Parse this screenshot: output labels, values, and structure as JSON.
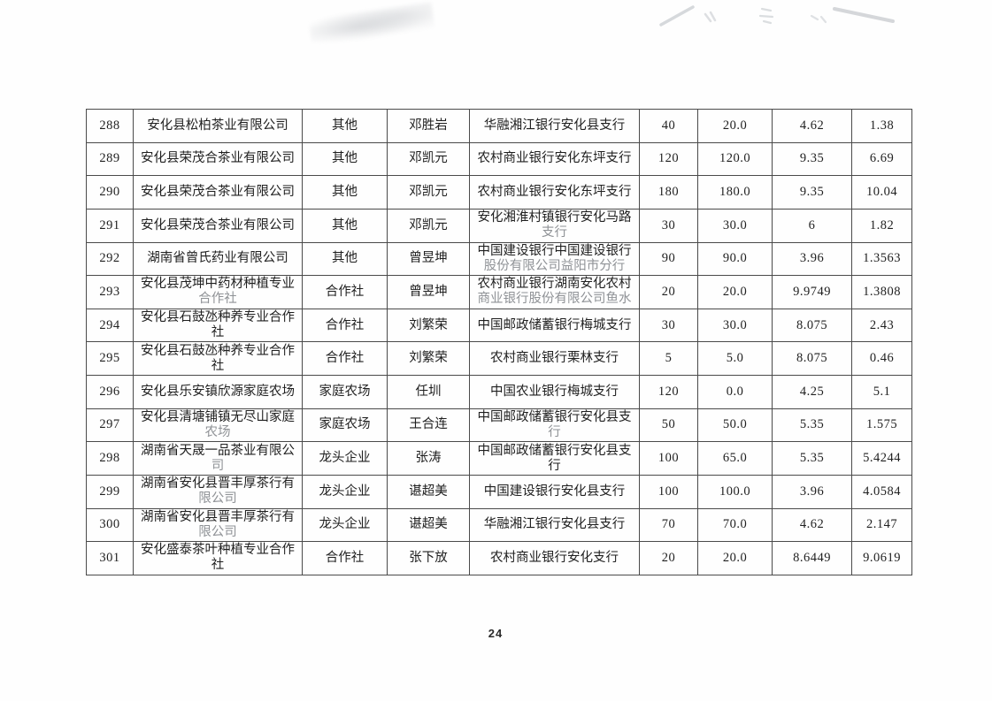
{
  "page": {
    "number": "24"
  },
  "table": {
    "rows": [
      {
        "no": "288",
        "company": [
          {
            "t": "安化县松柏茶业有限公司",
            "f": 0
          }
        ],
        "type": "其他",
        "person": "邓胜岩",
        "bank": [
          {
            "t": "华融湘江银行安化县支行",
            "f": 0
          }
        ],
        "vals": [
          "40",
          "20.0",
          "4.62",
          "1.38"
        ]
      },
      {
        "no": "289",
        "company": [
          {
            "t": "安化县荣茂合茶业有限公司",
            "f": 0
          }
        ],
        "type": "其他",
        "person": "邓凯元",
        "bank": [
          {
            "t": "农村商业银行安化东坪支行",
            "f": 0
          }
        ],
        "vals": [
          "120",
          "120.0",
          "9.35",
          "6.69"
        ]
      },
      {
        "no": "290",
        "company": [
          {
            "t": "安化县荣茂合茶业有限公司",
            "f": 0
          }
        ],
        "type": "其他",
        "person": "邓凯元",
        "bank": [
          {
            "t": "农村商业银行安化东坪支行",
            "f": 0
          }
        ],
        "vals": [
          "180",
          "180.0",
          "9.35",
          "10.04"
        ]
      },
      {
        "no": "291",
        "company": [
          {
            "t": "安化县荣茂合茶业有限公司",
            "f": 0
          }
        ],
        "type": "其他",
        "person": "邓凯元",
        "bank": [
          {
            "t": "安化湘淮村镇银行安化马路",
            "f": 0
          },
          {
            "t": "支行",
            "f": 1
          }
        ],
        "vals": [
          "30",
          "30.0",
          "6",
          "1.82"
        ]
      },
      {
        "no": "292",
        "company": [
          {
            "t": "湖南省曾氏药业有限公司",
            "f": 0
          }
        ],
        "type": "其他",
        "person": "曾昱坤",
        "bank": [
          {
            "t": "中国建设银行中国建设银行",
            "f": 0
          },
          {
            "t": "股份有限公司益阳市分行",
            "f": 1
          }
        ],
        "vals": [
          "90",
          "90.0",
          "3.96",
          "1.3563"
        ]
      },
      {
        "no": "293",
        "company": [
          {
            "t": "安化县茂坤中药材种植专业",
            "f": 0
          },
          {
            "t": "合作社",
            "f": 1
          }
        ],
        "type": "合作社",
        "person": "曾昱坤",
        "bank": [
          {
            "t": "农村商业银行湖南安化农村",
            "f": 0
          },
          {
            "t": "商业银行股份有限公司鱼水",
            "f": 1
          }
        ],
        "vals": [
          "20",
          "20.0",
          "9.9749",
          "1.3808"
        ]
      },
      {
        "no": "294",
        "company": [
          {
            "t": "安化县石鼓氹种养专业合作",
            "f": 0
          },
          {
            "t": "社",
            "f": 0
          }
        ],
        "type": "合作社",
        "person": "刘繁荣",
        "bank": [
          {
            "t": "中国邮政储蓄银行梅城支行",
            "f": 0
          }
        ],
        "vals": [
          "30",
          "30.0",
          "8.075",
          "2.43"
        ]
      },
      {
        "no": "295",
        "company": [
          {
            "t": "安化县石鼓氹种养专业合作",
            "f": 0
          },
          {
            "t": "社",
            "f": 0
          }
        ],
        "type": "合作社",
        "person": "刘繁荣",
        "bank": [
          {
            "t": "农村商业银行栗林支行",
            "f": 0
          }
        ],
        "vals": [
          "5",
          "5.0",
          "8.075",
          "0.46"
        ]
      },
      {
        "no": "296",
        "company": [
          {
            "t": "安化县乐安镇欣源家庭农场",
            "f": 0
          }
        ],
        "type": "家庭农场",
        "person": "任圳",
        "bank": [
          {
            "t": "中国农业银行梅城支行",
            "f": 0
          }
        ],
        "vals": [
          "120",
          "0.0",
          "4.25",
          "5.1"
        ]
      },
      {
        "no": "297",
        "company": [
          {
            "t": "安化县清塘铺镇无尽山家庭",
            "f": 0
          },
          {
            "t": "农场",
            "f": 1
          }
        ],
        "type": "家庭农场",
        "person": "王合连",
        "bank": [
          {
            "t": "中国邮政储蓄银行安化县支",
            "f": 0
          },
          {
            "t": "行",
            "f": 1
          }
        ],
        "vals": [
          "50",
          "50.0",
          "5.35",
          "1.575"
        ]
      },
      {
        "no": "298",
        "company": [
          {
            "t": "湖南省天晟一品茶业有限公",
            "f": 0
          },
          {
            "t": "司",
            "f": 1
          }
        ],
        "type": "龙头企业",
        "person": "张涛",
        "bank": [
          {
            "t": "中国邮政储蓄银行安化县支",
            "f": 0
          },
          {
            "t": "行",
            "f": 0
          }
        ],
        "vals": [
          "100",
          "65.0",
          "5.35",
          "5.4244"
        ]
      },
      {
        "no": "299",
        "company": [
          {
            "t": "湖南省安化县晋丰厚茶行有",
            "f": 0
          },
          {
            "t": "限公司",
            "f": 1
          }
        ],
        "type": "龙头企业",
        "person": "谌超美",
        "bank": [
          {
            "t": "中国建设银行安化县支行",
            "f": 0
          }
        ],
        "vals": [
          "100",
          "100.0",
          "3.96",
          "4.0584"
        ]
      },
      {
        "no": "300",
        "company": [
          {
            "t": "湖南省安化县晋丰厚茶行有",
            "f": 0
          },
          {
            "t": "限公司",
            "f": 1
          }
        ],
        "type": "龙头企业",
        "person": "谌超美",
        "bank": [
          {
            "t": "华融湘江银行安化县支行",
            "f": 0
          }
        ],
        "vals": [
          "70",
          "70.0",
          "4.62",
          "2.147"
        ]
      },
      {
        "no": "301",
        "company": [
          {
            "t": "安化盛泰茶叶种植专业合作",
            "f": 0
          },
          {
            "t": "社",
            "f": 0
          }
        ],
        "type": "合作社",
        "person": "张下放",
        "bank": [
          {
            "t": "农村商业银行安化支行",
            "f": 0
          }
        ],
        "vals": [
          "20",
          "20.0",
          "8.6449",
          "9.0619"
        ]
      }
    ]
  }
}
